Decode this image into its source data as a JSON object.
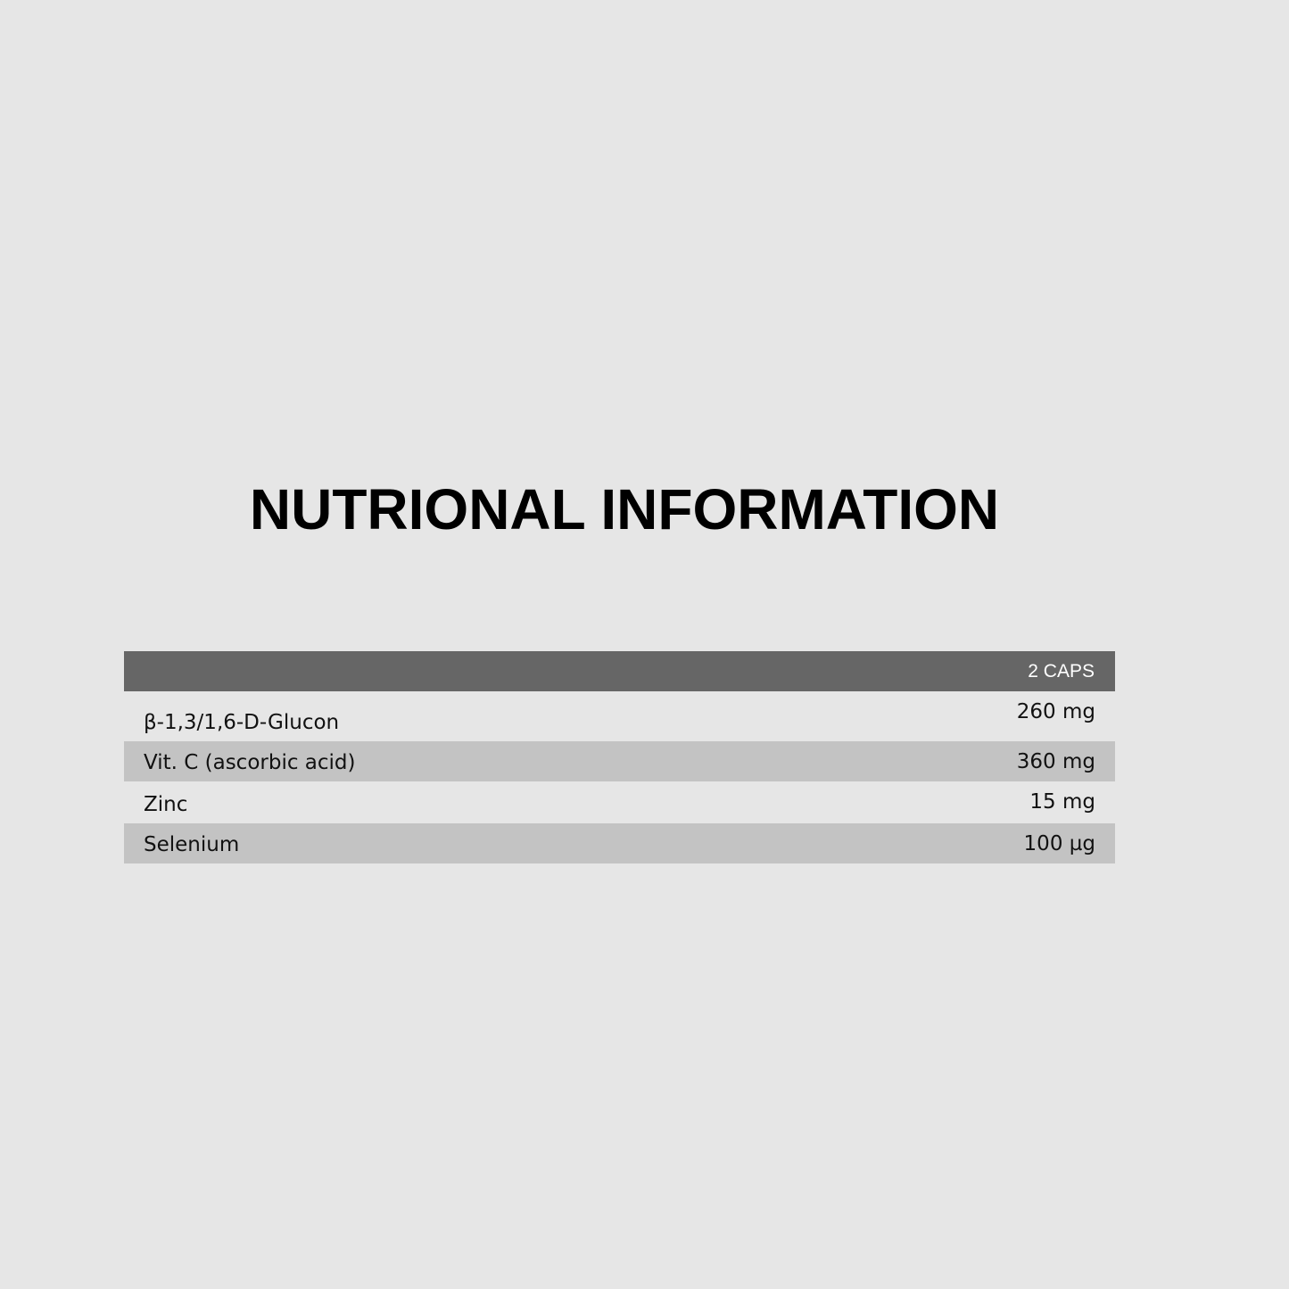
{
  "title": "NUTRIONAL INFORMATION",
  "table": {
    "header": "2 CAPS",
    "rows": [
      {
        "name": "β-1,3/1,6-D-Glucon",
        "value": "260 mg"
      },
      {
        "name": "Vit. C (ascorbic acid)",
        "value": "360 mg"
      },
      {
        "name": "Zinc",
        "value": "15 mg"
      },
      {
        "name": "Selenium",
        "value": "100 µg"
      }
    ]
  },
  "colors": {
    "background": "#e6e6e6",
    "header": "#666666",
    "stripe": "#c3c3c3"
  }
}
